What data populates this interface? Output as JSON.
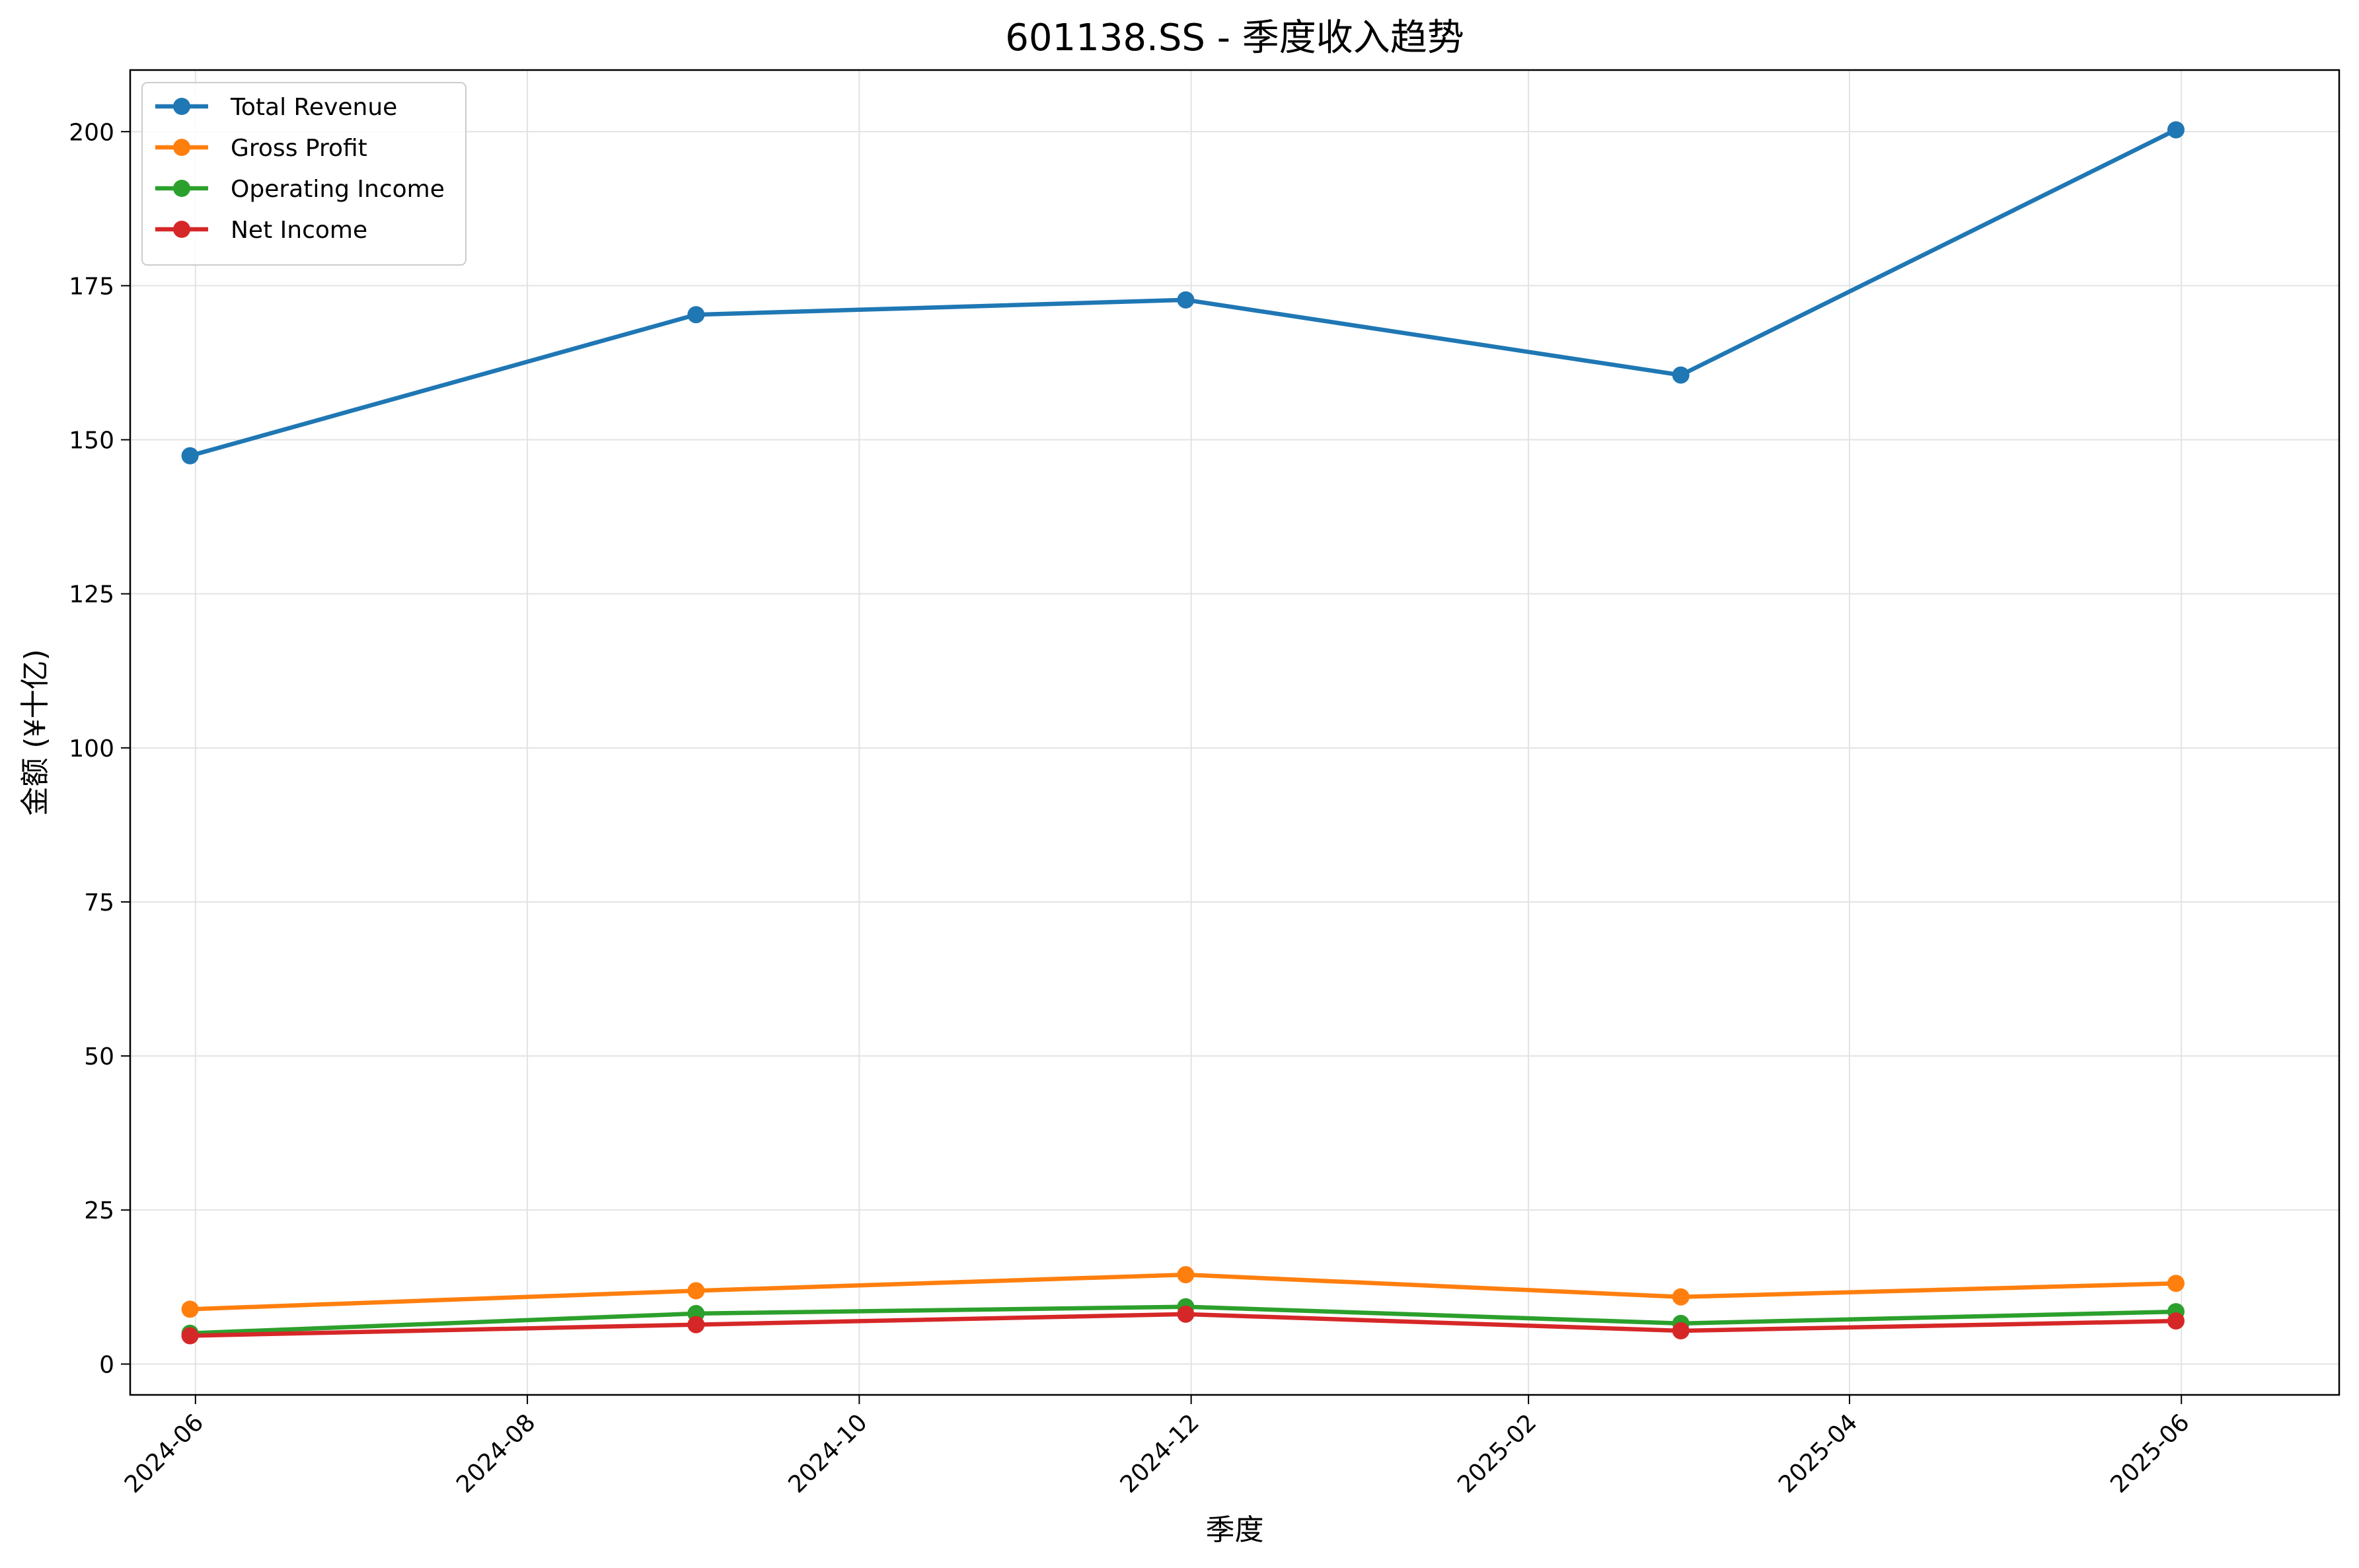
{
  "chart_data": {
    "type": "line",
    "title": "601138.SS - 季度收入趋势",
    "xlabel": "季度",
    "ylabel": "金额 (¥十亿)",
    "x": [
      "2024-05-31",
      "2024-09-01",
      "2024-11-30",
      "2025-03-01",
      "2025-05-31"
    ],
    "xlim": [
      "2024-05-20",
      "2025-06-30"
    ],
    "ylim": [
      -5,
      210
    ],
    "x_ticks": [
      "2024-06",
      "2024-08",
      "2024-10",
      "2024-12",
      "2025-02",
      "2025-04",
      "2025-06"
    ],
    "y_ticks": [
      0,
      25,
      50,
      75,
      100,
      125,
      150,
      175,
      200
    ],
    "grid": true,
    "legend_position": "top-left",
    "series": [
      {
        "name": "Total Revenue",
        "color": "#1f77b4",
        "values": [
          147.4,
          170.3,
          172.7,
          160.5,
          200.3
        ]
      },
      {
        "name": "Gross Profit",
        "color": "#ff7f0e",
        "values": [
          8.9,
          11.9,
          14.5,
          10.9,
          13.1
        ]
      },
      {
        "name": "Operating Income",
        "color": "#2ca02c",
        "values": [
          5.0,
          8.2,
          9.3,
          6.6,
          8.5
        ]
      },
      {
        "name": "Net Income",
        "color": "#d62728",
        "values": [
          4.6,
          6.4,
          8.1,
          5.4,
          7.0
        ]
      }
    ]
  }
}
